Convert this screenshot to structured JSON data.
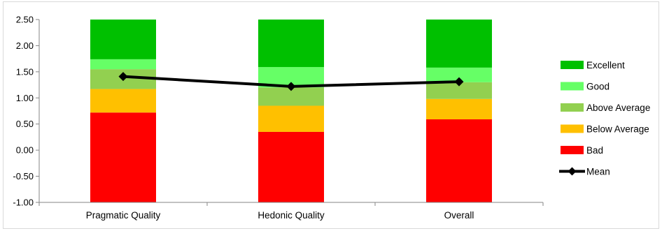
{
  "chart_data": {
    "type": "bar",
    "stacked": true,
    "categories": [
      "Pragmatic Quality",
      "Hedonic Quality",
      "Overall"
    ],
    "ylim": [
      -1.0,
      2.5
    ],
    "yticks": [
      "2.50",
      "2.00",
      "1.50",
      "1.00",
      "0.50",
      "0.00",
      "-0.50",
      "-1.00"
    ],
    "grid": false,
    "legend_position": "right",
    "bands": [
      {
        "name": "Bad",
        "color": "#ff0000",
        "bottom": [
          -1.0,
          -1.0,
          -1.0
        ],
        "top": [
          0.72,
          0.35,
          0.59
        ]
      },
      {
        "name": "Below Average",
        "color": "#ffc000",
        "bottom": [
          0.72,
          0.35,
          0.59
        ],
        "top": [
          1.17,
          0.85,
          0.98
        ]
      },
      {
        "name": "Above Average",
        "color": "#92d050",
        "bottom": [
          1.17,
          0.85,
          0.98
        ],
        "top": [
          1.55,
          1.2,
          1.3
        ]
      },
      {
        "name": "Good",
        "color": "#66ff66",
        "bottom": [
          1.55,
          1.2,
          1.3
        ],
        "top": [
          1.74,
          1.59,
          1.58
        ]
      },
      {
        "name": "Excellent",
        "color": "#00c000",
        "bottom": [
          1.74,
          1.59,
          1.58
        ],
        "top": [
          2.5,
          2.5,
          2.5
        ]
      }
    ],
    "series": [
      {
        "name": "Mean",
        "type": "line",
        "color": "#000000",
        "values": [
          1.41,
          1.22,
          1.31
        ]
      }
    ],
    "legend": [
      "Excellent",
      "Good",
      "Above Average",
      "Below Average",
      "Bad",
      "Mean"
    ]
  }
}
